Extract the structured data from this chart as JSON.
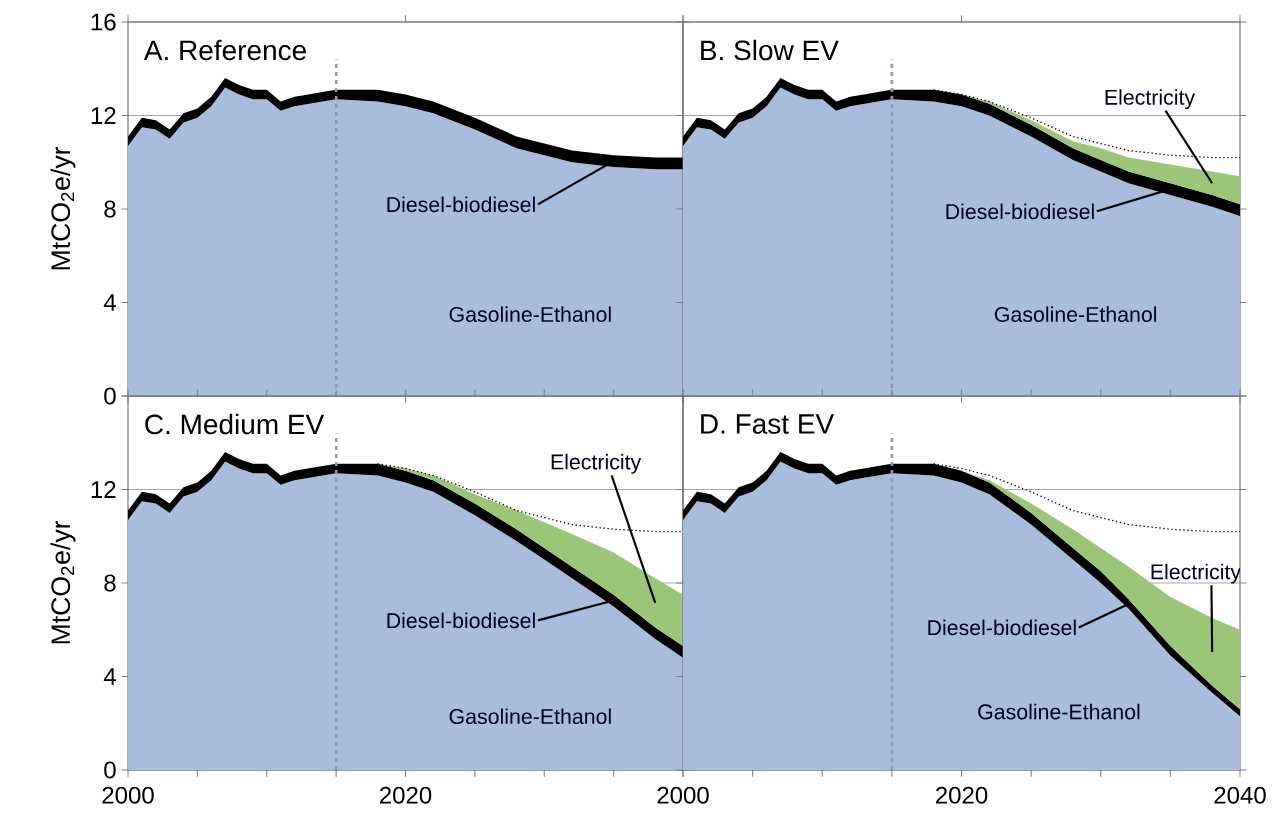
{
  "chart_data": [
    {
      "type": "area",
      "stacked": true,
      "title": "A. Reference",
      "ylabel": "MtCO$_{2}$e/yr",
      "grid": "y",
      "tick_labels": "y",
      "x": [
        2000,
        2001,
        2002,
        2003,
        2004,
        2005,
        2006,
        2007,
        2008,
        2009,
        2010,
        2011,
        2012,
        2013,
        2014,
        2015,
        2018,
        2020,
        2022,
        2025,
        2028,
        2030,
        2032,
        2035,
        2038,
        2040
      ],
      "xlim": [
        2000,
        2040
      ],
      "xticks": [
        2000,
        2020,
        2040
      ],
      "ylim": [
        0,
        16
      ],
      "yticks": [
        0,
        4,
        8,
        12,
        16
      ],
      "ref_lines": [
        {
          "axis": "x",
          "value": 2015,
          "color": "#8e9ab0",
          "line_style": "dashed"
        }
      ],
      "series": [
        {
          "name": "Gasoline-Ethanol",
          "color": "#a9bcdb",
          "values": [
            10.7,
            11.5,
            11.4,
            11.0,
            11.7,
            11.9,
            12.4,
            13.2,
            12.9,
            12.7,
            12.7,
            12.2,
            12.4,
            12.5,
            12.6,
            12.7,
            12.6,
            12.4,
            12.1,
            11.4,
            10.6,
            10.3,
            10.0,
            9.8,
            9.7,
            9.7
          ]
        },
        {
          "name": "Diesel-biodiesel",
          "color": "#000000",
          "values": [
            0.4,
            0.4,
            0.4,
            0.4,
            0.4,
            0.4,
            0.4,
            0.4,
            0.4,
            0.4,
            0.4,
            0.4,
            0.4,
            0.4,
            0.4,
            0.4,
            0.5,
            0.5,
            0.5,
            0.5,
            0.5,
            0.5,
            0.5,
            0.5,
            0.5,
            0.5
          ]
        }
      ]
    },
    {
      "type": "area",
      "stacked": true,
      "title": "B. Slow EV",
      "grid": "y",
      "tick_labels": false,
      "x": [
        2000,
        2001,
        2002,
        2003,
        2004,
        2005,
        2006,
        2007,
        2008,
        2009,
        2010,
        2011,
        2012,
        2013,
        2014,
        2015,
        2018,
        2020,
        2022,
        2025,
        2028,
        2030,
        2032,
        2035,
        2038,
        2040
      ],
      "xlim": [
        2000,
        2040
      ],
      "xticks": [
        2000,
        2020,
        2040
      ],
      "ylim": [
        0,
        16
      ],
      "yticks": [
        0,
        4,
        8,
        12,
        16
      ],
      "ref_lines": [
        {
          "axis": "x",
          "value": 2015,
          "color": "#8e9ab0",
          "line_style": "dashed"
        }
      ],
      "series": [
        {
          "name": "Gasoline-Ethanol",
          "color": "#a9bcdb",
          "values": [
            10.7,
            11.5,
            11.4,
            11.0,
            11.7,
            11.9,
            12.4,
            13.2,
            12.9,
            12.7,
            12.7,
            12.2,
            12.4,
            12.5,
            12.6,
            12.7,
            12.6,
            12.4,
            12.0,
            11.1,
            10.1,
            9.6,
            9.1,
            8.6,
            8.1,
            7.7
          ]
        },
        {
          "name": "Diesel-biodiesel",
          "color": "#000000",
          "values": [
            0.4,
            0.4,
            0.4,
            0.4,
            0.4,
            0.4,
            0.4,
            0.4,
            0.4,
            0.4,
            0.4,
            0.4,
            0.4,
            0.4,
            0.4,
            0.4,
            0.5,
            0.5,
            0.5,
            0.5,
            0.5,
            0.5,
            0.5,
            0.5,
            0.5,
            0.5
          ]
        },
        {
          "name": "Electricity",
          "color": "#9cc57a",
          "values": [
            0,
            0,
            0,
            0,
            0,
            0,
            0,
            0,
            0,
            0,
            0,
            0,
            0,
            0,
            0,
            0,
            0,
            0,
            0.1,
            0.2,
            0.3,
            0.5,
            0.6,
            0.8,
            1.0,
            1.2
          ]
        },
        {
          "type": "line",
          "line_style": "dotted",
          "color": "#000000",
          "values": [
            null,
            null,
            null,
            null,
            null,
            null,
            null,
            null,
            null,
            null,
            null,
            null,
            null,
            null,
            null,
            null,
            13.1,
            12.9,
            12.6,
            11.9,
            11.1,
            10.8,
            10.5,
            10.3,
            10.2,
            10.2
          ]
        }
      ]
    },
    {
      "type": "area",
      "stacked": true,
      "title": "C. Medium EV",
      "ylabel": "MtCO$_{2}$e/yr",
      "grid": "y",
      "x": [
        2000,
        2001,
        2002,
        2003,
        2004,
        2005,
        2006,
        2007,
        2008,
        2009,
        2010,
        2011,
        2012,
        2013,
        2014,
        2015,
        2018,
        2020,
        2022,
        2025,
        2028,
        2030,
        2032,
        2035,
        2038,
        2040
      ],
      "xlim": [
        2000,
        2040
      ],
      "xticks": [
        2000,
        {
          "value": 2005,
          "label": null
        },
        {
          "value": 2010,
          "label": null
        },
        {
          "value": 2015,
          "label": null
        },
        2020,
        {
          "value": 2025,
          "label": null
        },
        {
          "value": 2030,
          "label": null
        },
        {
          "value": 2035,
          "label": null
        },
        {
          "value": 2040,
          "label": null
        }
      ],
      "ylim": [
        0,
        16
      ],
      "yticks": [
        0,
        4,
        8,
        12,
        {
          "value": 16,
          "label": null
        }
      ],
      "ref_lines": [
        {
          "axis": "x",
          "value": 2015,
          "color": "#8e9ab0",
          "line_style": "dashed"
        }
      ],
      "series": [
        {
          "name": "Gasoline-Ethanol",
          "color": "#a9bcdb",
          "values": [
            10.7,
            11.5,
            11.4,
            11.0,
            11.7,
            11.9,
            12.4,
            13.2,
            12.9,
            12.7,
            12.7,
            12.2,
            12.4,
            12.5,
            12.6,
            12.7,
            12.6,
            12.3,
            11.9,
            10.9,
            9.8,
            9.0,
            8.2,
            7.0,
            5.6,
            4.8
          ]
        },
        {
          "name": "Diesel-biodiesel",
          "color": "#000000",
          "values": [
            0.4,
            0.4,
            0.4,
            0.4,
            0.4,
            0.4,
            0.4,
            0.4,
            0.4,
            0.4,
            0.4,
            0.4,
            0.4,
            0.4,
            0.4,
            0.4,
            0.5,
            0.5,
            0.5,
            0.5,
            0.5,
            0.5,
            0.5,
            0.5,
            0.5,
            0.5
          ]
        },
        {
          "name": "Electricity",
          "color": "#9cc57a",
          "values": [
            0,
            0,
            0,
            0,
            0,
            0,
            0,
            0,
            0,
            0,
            0,
            0,
            0,
            0,
            0,
            0,
            0,
            0.1,
            0.2,
            0.4,
            0.8,
            1.1,
            1.4,
            1.8,
            2.1,
            2.2
          ]
        },
        {
          "type": "line",
          "line_style": "dotted",
          "color": "#000000",
          "values": [
            null,
            null,
            null,
            null,
            null,
            null,
            null,
            null,
            null,
            null,
            null,
            null,
            null,
            null,
            null,
            null,
            13.1,
            12.9,
            12.6,
            11.9,
            11.1,
            10.8,
            10.5,
            10.3,
            10.2,
            10.2
          ]
        }
      ]
    },
    {
      "type": "area",
      "stacked": true,
      "title": "D. Fast EV",
      "grid": "y",
      "tick_labels": "x",
      "x": [
        2000,
        2001,
        2002,
        2003,
        2004,
        2005,
        2006,
        2007,
        2008,
        2009,
        2010,
        2011,
        2012,
        2013,
        2014,
        2015,
        2018,
        2020,
        2022,
        2025,
        2028,
        2030,
        2032,
        2035,
        2038,
        2040
      ],
      "xlim": [
        2000,
        2040
      ],
      "xticks": [
        2000,
        {
          "value": 2005,
          "label": null
        },
        {
          "value": 2010,
          "label": null
        },
        {
          "value": 2015,
          "label": null
        },
        2020,
        {
          "value": 2025,
          "label": null
        },
        {
          "value": 2030,
          "label": null
        },
        {
          "value": 2035,
          "label": null
        },
        2040
      ],
      "ylim": [
        0,
        16
      ],
      "yticks": [
        0,
        4,
        8,
        12,
        16
      ],
      "ref_lines": [
        {
          "axis": "x",
          "value": 2015,
          "color": "#8e9ab0",
          "line_style": "dashed"
        }
      ],
      "series": [
        {
          "name": "Gasoline-Ethanol",
          "color": "#a9bcdb",
          "values": [
            10.7,
            11.5,
            11.4,
            11.0,
            11.7,
            11.9,
            12.4,
            13.2,
            12.9,
            12.7,
            12.7,
            12.2,
            12.4,
            12.5,
            12.6,
            12.7,
            12.6,
            12.3,
            11.8,
            10.5,
            9.0,
            8.0,
            6.9,
            4.9,
            3.3,
            2.3
          ]
        },
        {
          "name": "Diesel-biodiesel",
          "color": "#000000",
          "values": [
            0.4,
            0.4,
            0.4,
            0.4,
            0.4,
            0.4,
            0.4,
            0.4,
            0.4,
            0.4,
            0.4,
            0.4,
            0.4,
            0.4,
            0.4,
            0.4,
            0.5,
            0.5,
            0.5,
            0.5,
            0.5,
            0.5,
            0.4,
            0.4,
            0.3,
            0.3
          ]
        },
        {
          "name": "Electricity",
          "color": "#9cc57a",
          "values": [
            0,
            0,
            0,
            0,
            0,
            0,
            0,
            0,
            0,
            0,
            0,
            0,
            0,
            0,
            0,
            0,
            0,
            0,
            0.1,
            0.4,
            0.8,
            1.0,
            1.4,
            2.1,
            2.9,
            3.4
          ]
        },
        {
          "type": "line",
          "line_style": "dotted",
          "color": "#000000",
          "values": [
            null,
            null,
            null,
            null,
            null,
            null,
            null,
            null,
            null,
            null,
            null,
            null,
            null,
            null,
            null,
            null,
            13.1,
            12.9,
            12.6,
            11.9,
            11.1,
            10.8,
            10.5,
            10.3,
            10.2,
            10.2
          ]
        }
      ]
    }
  ]
}
